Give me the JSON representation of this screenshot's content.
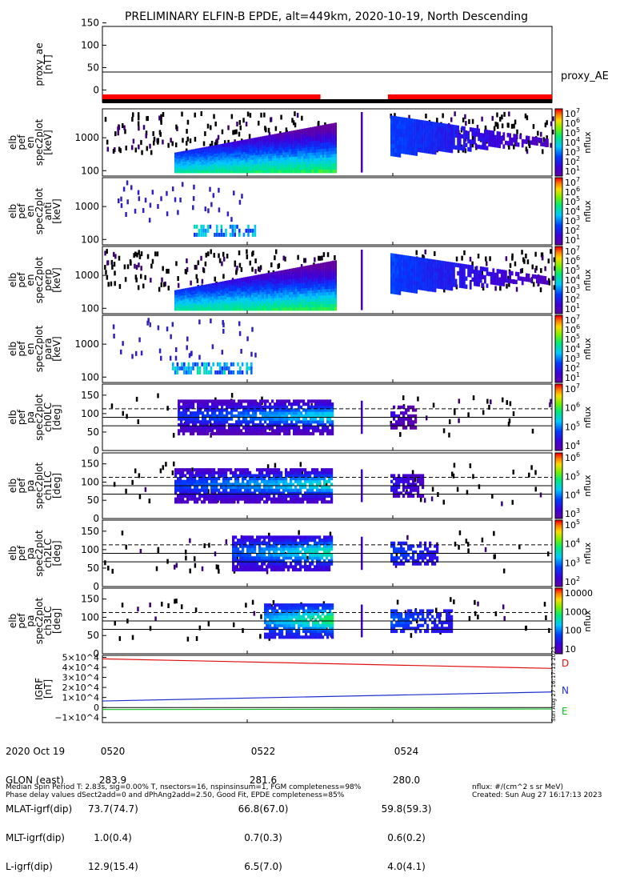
{
  "title": "PRELIMINARY ELFIN-B EPDE, alt=449km, 2020-10-19, North Descending",
  "colors": {
    "red_bar": "#ff0000",
    "black_bar": "#000000",
    "component_D": "#e01010",
    "component_N": "#2030d0",
    "component_E": "#10c020"
  },
  "chart_data": [
    {
      "type": "line",
      "ylabel": [
        "proxy_ae",
        "[nT]"
      ],
      "ylim": [
        -10,
        160
      ],
      "yticks": [
        "150",
        "100",
        "50",
        "0"
      ],
      "series": [
        {
          "name": "proxy_AE",
          "values": [
            40,
            40
          ]
        }
      ],
      "bars": {
        "red": [
          [
            0,
            48.5
          ],
          [
            63.5,
            100
          ]
        ],
        "black": [
          [
            0,
            100
          ]
        ]
      }
    },
    {
      "type": "heatmap",
      "ylabel": [
        "elb",
        "pef",
        "en",
        "spec2plot",
        "[keV]"
      ],
      "yticks": [
        "1000",
        "100"
      ],
      "colorbar": {
        "label": "nflux",
        "ticks": [
          "10^7",
          "10^6",
          "10^5",
          "10^4",
          "10^3",
          "10^2",
          "10^1"
        ]
      }
    },
    {
      "type": "heatmap",
      "ylabel": [
        "elb",
        "pef",
        "en",
        "spec2plot",
        "anti",
        "[keV]"
      ],
      "yticks": [
        "1000",
        "100"
      ],
      "colorbar": {
        "label": "nflux",
        "ticks": [
          "10^7",
          "10^6",
          "10^5",
          "10^4",
          "10^3",
          "10^2",
          "10^1"
        ]
      }
    },
    {
      "type": "heatmap",
      "ylabel": [
        "elb",
        "pef",
        "en",
        "spec2plot",
        "perp",
        "[keV]"
      ],
      "yticks": [
        "1000",
        "100"
      ],
      "colorbar": {
        "label": "nflux",
        "ticks": [
          "10^7",
          "10^6",
          "10^5",
          "10^4",
          "10^3",
          "10^2",
          "10^1"
        ]
      }
    },
    {
      "type": "heatmap",
      "ylabel": [
        "elb",
        "pef",
        "en",
        "spec2plot",
        "para",
        "[keV]"
      ],
      "yticks": [
        "1000",
        "100"
      ],
      "colorbar": {
        "label": "nflux",
        "ticks": [
          "10^7",
          "10^6",
          "10^5",
          "10^4",
          "10^3",
          "10^2",
          "10^1"
        ]
      }
    },
    {
      "type": "heatmap",
      "ylabel": [
        "elb",
        "pef",
        "pa",
        "spec2plot",
        "ch0LC",
        "[deg]"
      ],
      "ylim": [
        0,
        180
      ],
      "yticks": [
        "150",
        "100",
        "50",
        "0"
      ],
      "colorbar": {
        "label": "nflux",
        "ticks": [
          "10^7",
          "10^6",
          "10^5",
          "10^4"
        ]
      }
    },
    {
      "type": "heatmap",
      "ylabel": [
        "elb",
        "pef",
        "pa",
        "spec2plot",
        "ch1LC",
        "[deg]"
      ],
      "ylim": [
        0,
        180
      ],
      "yticks": [
        "150",
        "100",
        "50",
        "0"
      ],
      "colorbar": {
        "label": "nflux",
        "ticks": [
          "10^6",
          "10^5",
          "10^4",
          "10^3"
        ]
      }
    },
    {
      "type": "heatmap",
      "ylabel": [
        "elb",
        "pef",
        "pa",
        "spec2plot",
        "ch2LC",
        "[deg]"
      ],
      "ylim": [
        0,
        180
      ],
      "yticks": [
        "150",
        "100",
        "50",
        "0"
      ],
      "colorbar": {
        "label": "nflux",
        "ticks": [
          "10^5",
          "10^4",
          "10^3",
          "10^2"
        ]
      }
    },
    {
      "type": "heatmap",
      "ylabel": [
        "elb",
        "pef",
        "pa",
        "spec2plot",
        "ch3LC",
        "[deg]"
      ],
      "ylim": [
        0,
        180
      ],
      "yticks": [
        "150",
        "100",
        "50",
        "0"
      ],
      "colorbar": {
        "label": "nflux",
        "ticks": [
          "10000",
          "1000",
          "100",
          "10"
        ]
      }
    },
    {
      "type": "line",
      "ylabel": [
        "IGRF",
        "[nT]"
      ],
      "ylim": [
        -15000,
        52000
      ],
      "yticks": [
        "5×10^4",
        "4×10^4",
        "3×10^4",
        "2×10^4",
        "1×10^4",
        "0",
        "−1×10^4"
      ],
      "series": [
        {
          "name": "D",
          "values": [
            48500,
            39000
          ]
        },
        {
          "name": "N",
          "values": [
            6500,
            15500
          ]
        },
        {
          "name": "E",
          "values": [
            -2000,
            -1500
          ]
        }
      ]
    }
  ],
  "footer": {
    "rows": [
      {
        "label": "2020 Oct 19",
        "v1": "0520",
        "v2": "0522",
        "v3": "0524"
      },
      {
        "label": "GLON (east)",
        "v1": "283.9",
        "v2": "281.6",
        "v3": "280.0"
      },
      {
        "label": "MLAT-igrf(dip)",
        "v1": "73.7(74.7)",
        "v2": "66.8(67.0)",
        "v3": "59.8(59.3)"
      },
      {
        "label": "MLT-igrf(dip)",
        "v1": "1.0(0.4)",
        "v2": "0.7(0.3)",
        "v3": "0.6(0.2)"
      },
      {
        "label": "L-igrf(dip)",
        "v1": "12.9(15.4)",
        "v2": "6.5(7.0)",
        "v3": "4.0(4.1)"
      }
    ],
    "note1": "Median Spin Period T: 2.83s, sig=0.00% T, nsectors=16, nspinsinsum=1, FGM completeness=98%",
    "note2": "Phase delay values dSect2add=0 and dPhAng2add=2.50, Good Fit, EPDE completeness=85%",
    "units": "nflux: #/(cm^2 s sr MeV)",
    "created": "Created: Sun Aug 27 16:17:13 2023",
    "vertical_stamp": "Sun Aug 27 16:17:13 2023"
  }
}
